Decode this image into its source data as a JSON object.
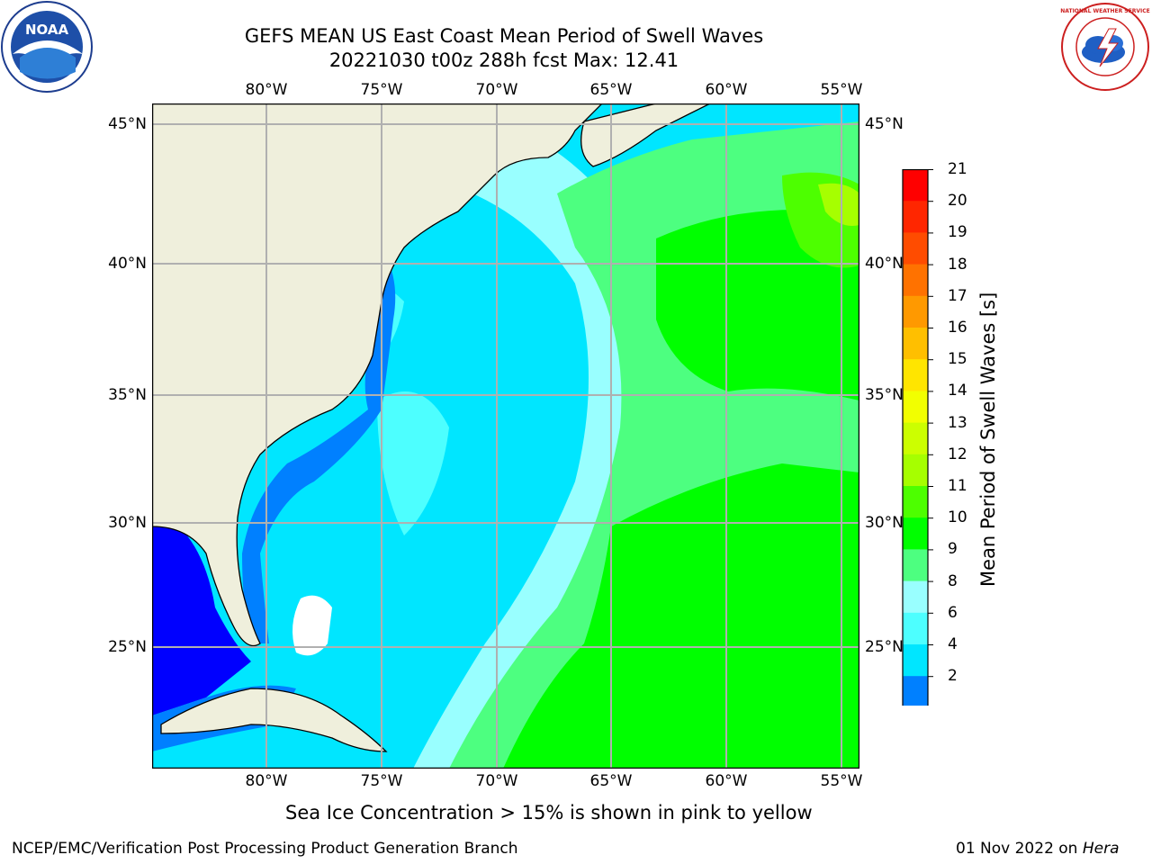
{
  "header": {
    "title_line1": "GEFS MEAN US East Coast Mean Period of Swell Waves",
    "title_line2": "20221030 t00z 288h fcst   Max: 12.41"
  },
  "logos": {
    "noaa_text": "NOAA",
    "nws_text": "NATIONAL WEATHER SERVICE"
  },
  "axes": {
    "lon_labels": [
      "80°W",
      "75°W",
      "70°W",
      "65°W",
      "60°W",
      "55°W"
    ],
    "lat_labels_left": [
      "45°N",
      "40°N",
      "35°N",
      "30°N",
      "25°N"
    ],
    "lat_labels_right": [
      "45°N",
      "40°N",
      "35°N",
      "30°N",
      "25°N"
    ]
  },
  "colorbar": {
    "label": "Mean Period of Swell Waves [s]",
    "ticks": [
      "21",
      "20",
      "19",
      "18",
      "17",
      "16",
      "15",
      "14",
      "13",
      "12",
      "11",
      "10",
      "9",
      "8",
      "6",
      "4",
      "2"
    ],
    "colors": [
      "#ff0000",
      "#ff2600",
      "#ff4c00",
      "#ff7200",
      "#ff9900",
      "#ffbf00",
      "#ffe500",
      "#f2ff00",
      "#ccff00",
      "#a6ff00",
      "#4dff00",
      "#00ff00",
      "#4dff80",
      "#99ffff",
      "#4dffff",
      "#00e6ff",
      "#0080ff",
      "#0000ff"
    ]
  },
  "map_colors": {
    "land": "#efefdc",
    "grid": "#b0b0b0",
    "ice_note_colors": "pink to yellow"
  },
  "footer": {
    "note": "Sea Ice Concentration > 15% is shown in pink to yellow",
    "credit": "NCEP/EMC/Verification Post Processing Product Generation Branch",
    "date": "01 Nov 2022 on",
    "machine": "Hera"
  }
}
